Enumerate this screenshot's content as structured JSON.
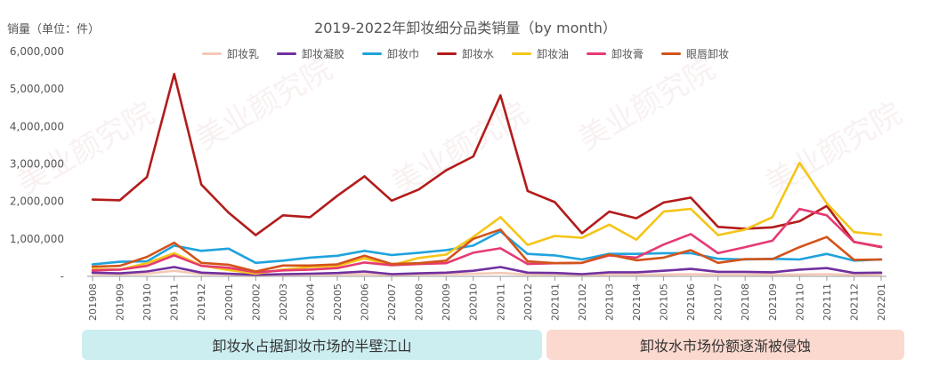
{
  "chart_data": {
    "type": "line",
    "title": "2019-2022年卸妆细分品类销量（by month）",
    "ylabel": "销量（单位：件）",
    "ylim": [
      0,
      6000000
    ],
    "yticks": [
      "-",
      "1,000,000",
      "2,000,000",
      "3,000,000",
      "4,000,000",
      "5,000,000",
      "6,000,000"
    ],
    "grid": false,
    "legend_position": "top-center",
    "categories": [
      "201908",
      "201909",
      "201910",
      "201911",
      "201912",
      "202001",
      "202002",
      "202003",
      "202004",
      "202005",
      "202006",
      "202007",
      "202008",
      "202009",
      "202010",
      "202011",
      "202012",
      "202101",
      "202102",
      "202103",
      "202104",
      "202105",
      "202106",
      "202107",
      "202108",
      "202109",
      "202110",
      "202111",
      "202112",
      "202201"
    ],
    "series": [
      {
        "name": "卸妆乳",
        "color": "#f4c9b6",
        "values": [
          60000,
          50000,
          70000,
          150000,
          60000,
          50000,
          30000,
          40000,
          50000,
          50000,
          60000,
          40000,
          50000,
          60000,
          70000,
          90000,
          50000,
          50000,
          40000,
          50000,
          50000,
          50000,
          60000,
          50000,
          50000,
          50000,
          50000,
          60000,
          40000,
          50000
        ]
      },
      {
        "name": "卸妆凝胶",
        "color": "#7030a0",
        "values": [
          100000,
          80000,
          130000,
          250000,
          100000,
          70000,
          40000,
          60000,
          70000,
          90000,
          130000,
          60000,
          80000,
          100000,
          150000,
          250000,
          100000,
          90000,
          60000,
          110000,
          110000,
          150000,
          200000,
          120000,
          120000,
          110000,
          180000,
          220000,
          90000,
          100000
        ]
      },
      {
        "name": "卸妆巾",
        "color": "#1fa3dc",
        "values": [
          320000,
          390000,
          400000,
          820000,
          680000,
          740000,
          360000,
          420000,
          500000,
          550000,
          680000,
          570000,
          630000,
          700000,
          820000,
          1200000,
          600000,
          560000,
          450000,
          600000,
          600000,
          620000,
          620000,
          470000,
          450000,
          470000,
          450000,
          600000,
          420000,
          450000
        ]
      },
      {
        "name": "卸妆水",
        "color": "#b31b1b",
        "values": [
          2050000,
          2030000,
          2650000,
          5400000,
          2450000,
          1700000,
          1100000,
          1630000,
          1580000,
          2150000,
          2670000,
          2020000,
          2320000,
          2830000,
          3200000,
          4830000,
          2280000,
          1980000,
          1150000,
          1730000,
          1550000,
          1970000,
          2100000,
          1320000,
          1270000,
          1310000,
          1470000,
          1880000,
          920000,
          780000
        ]
      },
      {
        "name": "卸妆油",
        "color": "#f5c518",
        "values": [
          200000,
          180000,
          350000,
          620000,
          290000,
          170000,
          70000,
          180000,
          250000,
          280000,
          480000,
          300000,
          490000,
          580000,
          1050000,
          1580000,
          840000,
          1080000,
          1030000,
          1380000,
          980000,
          1730000,
          1800000,
          1100000,
          1250000,
          1580000,
          3030000,
          1950000,
          1180000,
          1110000
        ]
      },
      {
        "name": "卸妆膏",
        "color": "#e63a72",
        "values": [
          160000,
          180000,
          280000,
          560000,
          280000,
          230000,
          110000,
          160000,
          180000,
          220000,
          370000,
          300000,
          330000,
          350000,
          630000,
          750000,
          330000,
          350000,
          360000,
          560000,
          500000,
          850000,
          1130000,
          620000,
          780000,
          950000,
          1800000,
          1630000,
          920000,
          790000
        ]
      },
      {
        "name": "眼唇卸妆",
        "color": "#d2541b",
        "values": [
          260000,
          280000,
          520000,
          900000,
          360000,
          310000,
          130000,
          290000,
          290000,
          320000,
          550000,
          330000,
          350000,
          420000,
          1000000,
          1250000,
          400000,
          350000,
          360000,
          580000,
          430000,
          500000,
          700000,
          360000,
          460000,
          460000,
          780000,
          1050000,
          440000,
          450000
        ]
      }
    ]
  },
  "annotations": {
    "left_band": "卸妆水占据卸妆市场的半壁江山",
    "right_band": "卸妆水市场份额逐渐被侵蚀"
  },
  "watermark_text": "美业颜究院"
}
